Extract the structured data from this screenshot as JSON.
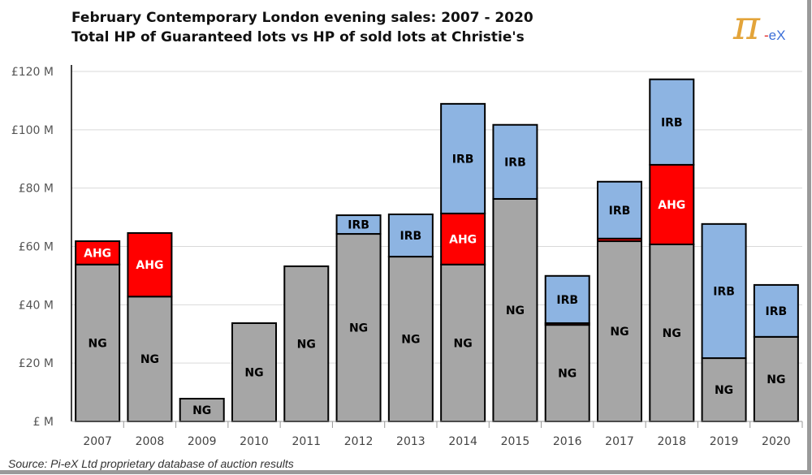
{
  "title_line1": "February Contemporary London evening sales: 2007 - 2020",
  "title_line2": "Total HP of Guaranteed lots vs HP of sold lots at Christie's",
  "logo": {
    "symbol": "π",
    "dash": "-",
    "text": "eX"
  },
  "source": "Source:  Pi-eX Ltd proprietary database of auction results",
  "chart_data": {
    "type": "bar",
    "stacked": true,
    "title": "February Contemporary London evening sales: 2007 - 2020",
    "ylabel": "",
    "xlabel": "",
    "ylim": [
      0,
      120
    ],
    "yticks": [
      0,
      20,
      40,
      60,
      80,
      100,
      120
    ],
    "ytick_labels": [
      "£ M",
      "£20 M",
      "£40 M",
      "£60 M",
      "£80 M",
      "£100 M",
      "£120 M"
    ],
    "grid": true,
    "categories": [
      "2007",
      "2008",
      "2009",
      "2010",
      "2011",
      "2012",
      "2013",
      "2014",
      "2015",
      "2016",
      "2017",
      "2018",
      "2019",
      "2020"
    ],
    "series": [
      {
        "name": "NG",
        "color": "#a6a6a6",
        "label_color": "#000000",
        "values": [
          53.8,
          42.8,
          7.8,
          33.7,
          53.2,
          64.3,
          56.5,
          53.8,
          76.3,
          33.1,
          61.8,
          60.7,
          21.7,
          29.0
        ]
      },
      {
        "name": "AHG",
        "color": "#ff0000",
        "label_color": "#ffffff",
        "values": [
          8.0,
          21.8,
          0,
          0,
          0,
          0,
          0,
          17.5,
          0,
          0.6,
          0.9,
          27.3,
          0,
          0
        ]
      },
      {
        "name": "IRB",
        "color": "#8db4e2",
        "label_color": "#000000",
        "values": [
          0,
          0,
          0,
          0,
          0,
          6.4,
          14.5,
          37.6,
          25.4,
          16.2,
          19.5,
          29.3,
          46.0,
          17.8
        ]
      }
    ]
  }
}
